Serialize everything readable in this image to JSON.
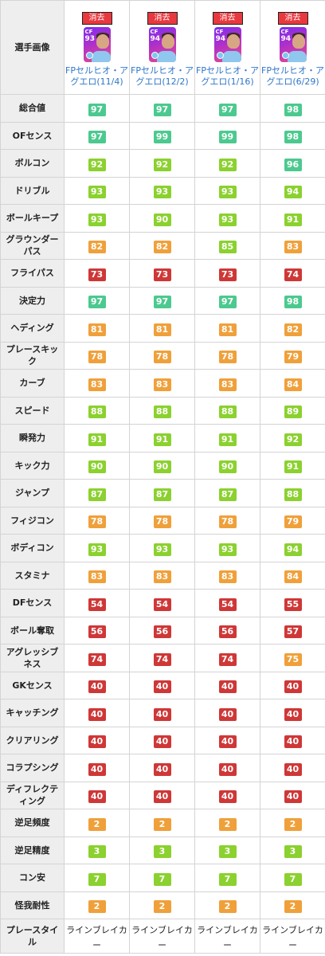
{
  "colors": {
    "teal": "#4cc98f",
    "lime": "#8bd12f",
    "orange": "#f0a03a",
    "red": "#cf3737",
    "remove_button": "#e8393f",
    "link": "#2f76c8"
  },
  "header": {
    "label": "選手画像"
  },
  "players": [
    {
      "remove_label": "消去",
      "position": "CF",
      "rating": "93",
      "name": "FPセルヒオ・アグエロ(11/4)",
      "card_icon": "player-card-icon"
    },
    {
      "remove_label": "消去",
      "position": "CF",
      "rating": "94",
      "name": "FPセルヒオ・アグエロ(12/2)",
      "card_icon": "player-card-icon"
    },
    {
      "remove_label": "消去",
      "position": "CF",
      "rating": "94",
      "name": "FPセルヒオ・アグエロ(1/16)",
      "card_icon": "player-card-icon"
    },
    {
      "remove_label": "消去",
      "position": "CF",
      "rating": "94",
      "name": "FPセルヒオ・アグエロ(6/29)",
      "card_icon": "player-card-icon"
    }
  ],
  "stats": [
    {
      "label": "総合値",
      "values": [
        97,
        97,
        97,
        98
      ]
    },
    {
      "label": "OFセンス",
      "values": [
        97,
        99,
        99,
        98
      ]
    },
    {
      "label": "ボルコン",
      "values": [
        92,
        92,
        92,
        96
      ]
    },
    {
      "label": "ドリブル",
      "values": [
        93,
        93,
        93,
        94
      ]
    },
    {
      "label": "ボールキープ",
      "values": [
        93,
        90,
        93,
        91
      ]
    },
    {
      "label": "グラウンダーパス",
      "values": [
        82,
        82,
        85,
        83
      ]
    },
    {
      "label": "フライパス",
      "values": [
        73,
        73,
        73,
        74
      ]
    },
    {
      "label": "決定力",
      "values": [
        97,
        97,
        97,
        98
      ]
    },
    {
      "label": "ヘディング",
      "values": [
        81,
        81,
        81,
        82
      ]
    },
    {
      "label": "プレースキック",
      "values": [
        78,
        78,
        78,
        79
      ]
    },
    {
      "label": "カーブ",
      "values": [
        83,
        83,
        83,
        84
      ]
    },
    {
      "label": "スピード",
      "values": [
        88,
        88,
        88,
        89
      ]
    },
    {
      "label": "瞬発力",
      "values": [
        91,
        91,
        91,
        92
      ]
    },
    {
      "label": "キック力",
      "values": [
        90,
        90,
        90,
        91
      ]
    },
    {
      "label": "ジャンプ",
      "values": [
        87,
        87,
        87,
        88
      ]
    },
    {
      "label": "フィジコン",
      "values": [
        78,
        78,
        78,
        79
      ]
    },
    {
      "label": "ボディコン",
      "values": [
        93,
        93,
        93,
        94
      ]
    },
    {
      "label": "スタミナ",
      "values": [
        83,
        83,
        83,
        84
      ]
    },
    {
      "label": "DFセンス",
      "values": [
        54,
        54,
        54,
        55
      ]
    },
    {
      "label": "ボール奪取",
      "values": [
        56,
        56,
        56,
        57
      ]
    },
    {
      "label": "アグレッシブネス",
      "values": [
        74,
        74,
        74,
        75
      ]
    },
    {
      "label": "GKセンス",
      "values": [
        40,
        40,
        40,
        40
      ]
    },
    {
      "label": "キャッチング",
      "values": [
        40,
        40,
        40,
        40
      ]
    },
    {
      "label": "クリアリング",
      "values": [
        40,
        40,
        40,
        40
      ]
    },
    {
      "label": "コラプシング",
      "values": [
        40,
        40,
        40,
        40
      ]
    },
    {
      "label": "ディフレクティング",
      "values": [
        40,
        40,
        40,
        40
      ]
    },
    {
      "label": "逆足頻度",
      "values": [
        2,
        2,
        2,
        2
      ]
    },
    {
      "label": "逆足精度",
      "values": [
        3,
        3,
        3,
        3
      ]
    },
    {
      "label": "コン安",
      "values": [
        7,
        7,
        7,
        7
      ]
    },
    {
      "label": "怪我耐性",
      "values": [
        2,
        2,
        2,
        2
      ]
    }
  ],
  "play_style": {
    "label": "プレースタイル",
    "values": [
      "ラインブレイカー",
      "ラインブレイカー",
      "ラインブレイカー",
      "ラインブレイカー"
    ]
  }
}
